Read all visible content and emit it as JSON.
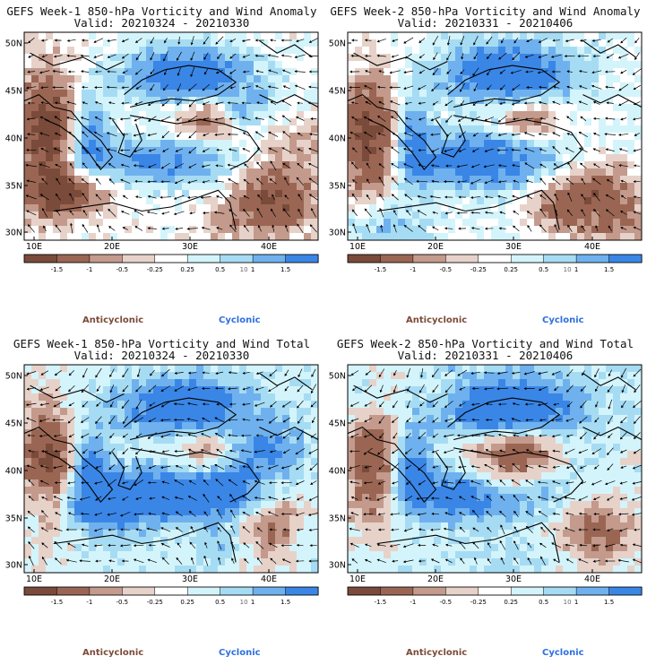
{
  "colors": {
    "brown_dark": "#7a4a3a",
    "brown_mid": "#9a6653",
    "brown_light": "#c39a8c",
    "brown_pale": "#e7d2c9",
    "blue_pale": "#d4f4fb",
    "blue_light": "#a6dcf3",
    "blue_mid": "#6fb1ee",
    "blue_dark": "#3a86e6",
    "anticyclonic": "#7b4a39",
    "cyclonic": "#2e6fe0"
  },
  "colorbar": {
    "ticks": [
      "-1.5",
      "-1",
      "-0.5",
      "-0.25",
      "0.25",
      "0.5",
      "1",
      "1.5"
    ],
    "scale_label": "10"
  },
  "axes": {
    "lat_labels": [
      "50N",
      "45N",
      "40N",
      "35N",
      "30N"
    ],
    "lon_labels": [
      "10E",
      "20E",
      "30E",
      "40E"
    ]
  },
  "panels": [
    {
      "title1": "GEFS Week-1 850-hPa Vorticity and Wind Anomaly",
      "title2": "Valid: 20210324 - 20210330",
      "anticyclonic": "Anticyclonic",
      "cyclonic": "Cyclonic",
      "seed": 11
    },
    {
      "title1": "GEFS Week-2 850-hPa Vorticity and Wind Anomaly",
      "title2": "Valid: 20210331 - 20210406",
      "anticyclonic": "Anticyclonic",
      "cyclonic": "Cyclonic",
      "seed": 23
    },
    {
      "title1": "GEFS Week-1 850-hPa Vorticity and Wind Total",
      "title2": "Valid: 20210324 - 20210330",
      "anticyclonic": "Anticyclonic",
      "cyclonic": "Cyclonic",
      "seed": 37
    },
    {
      "title1": "GEFS Week-2 850-hPa Vorticity and Wind Total",
      "title2": "Valid: 20210331 - 20210406",
      "anticyclonic": "Anticyclonic",
      "cyclonic": "Cyclonic",
      "seed": 53
    }
  ]
}
